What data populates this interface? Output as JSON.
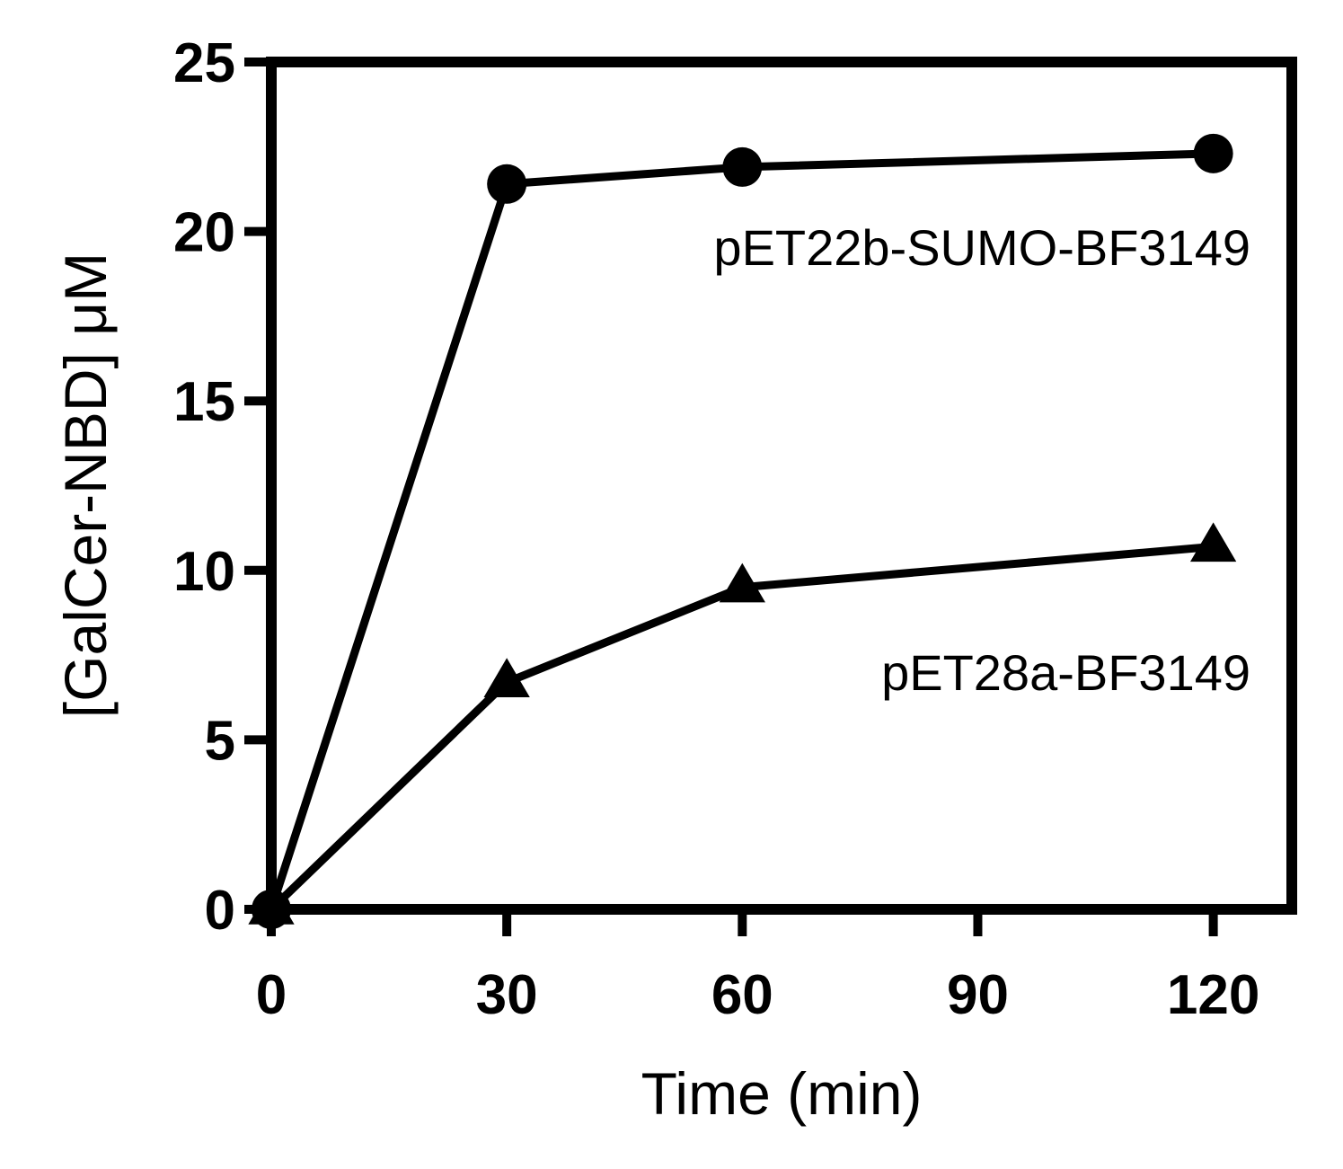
{
  "chart_data": {
    "type": "line",
    "xlabel": "Time (min)",
    "ylabel": "[GalCer-NBD] μM",
    "xlim": [
      0,
      130
    ],
    "ylim": [
      0,
      25
    ],
    "xticks": [
      0,
      30,
      60,
      90,
      120
    ],
    "yticks": [
      0,
      5,
      10,
      15,
      20,
      25
    ],
    "xtick_labels": [
      "0",
      "30",
      "60",
      "90",
      "120"
    ],
    "ytick_labels": [
      "0",
      "5",
      "10",
      "15",
      "20",
      "25"
    ],
    "grid": false,
    "legend": "none",
    "series": [
      {
        "name": "pET22b-SUMO-BF3149",
        "marker": "circle",
        "color": "#000000",
        "x": [
          0,
          30,
          60,
          120
        ],
        "y": [
          0,
          21.4,
          21.9,
          22.3
        ]
      },
      {
        "name": "pET28a-BF3149",
        "marker": "triangle",
        "color": "#000000",
        "x": [
          0,
          30,
          60,
          120
        ],
        "y": [
          0,
          6.7,
          9.5,
          10.7
        ]
      }
    ]
  }
}
